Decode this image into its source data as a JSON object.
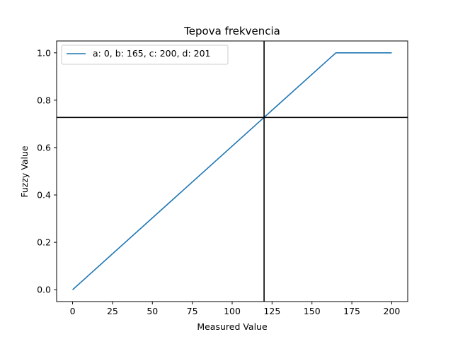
{
  "chart_data": {
    "type": "line",
    "title": "Tepova frekvencia",
    "xlabel": "Measured Value",
    "ylabel": "Fuzzy Value",
    "xlim": [
      -10,
      210
    ],
    "ylim": [
      -0.05,
      1.05
    ],
    "xticks": [
      0,
      25,
      50,
      75,
      100,
      125,
      150,
      175,
      200
    ],
    "yticks": [
      0.0,
      0.2,
      0.4,
      0.6,
      0.8,
      1.0
    ],
    "xtick_labels": [
      "0",
      "25",
      "50",
      "75",
      "100",
      "125",
      "150",
      "175",
      "200"
    ],
    "ytick_labels": [
      "0.0",
      "0.2",
      "0.4",
      "0.6",
      "0.8",
      "1.0"
    ],
    "grid": false,
    "legend_placement": "top-left",
    "series": [
      {
        "name": "a: 0, b: 165, c: 200, d: 201",
        "color": "#1f77b4",
        "x": [
          0,
          165,
          200
        ],
        "y": [
          0,
          1,
          1
        ]
      }
    ],
    "reference_lines": {
      "color": "#000000",
      "vertical_x": 120,
      "horizontal_y": 0.727
    }
  }
}
